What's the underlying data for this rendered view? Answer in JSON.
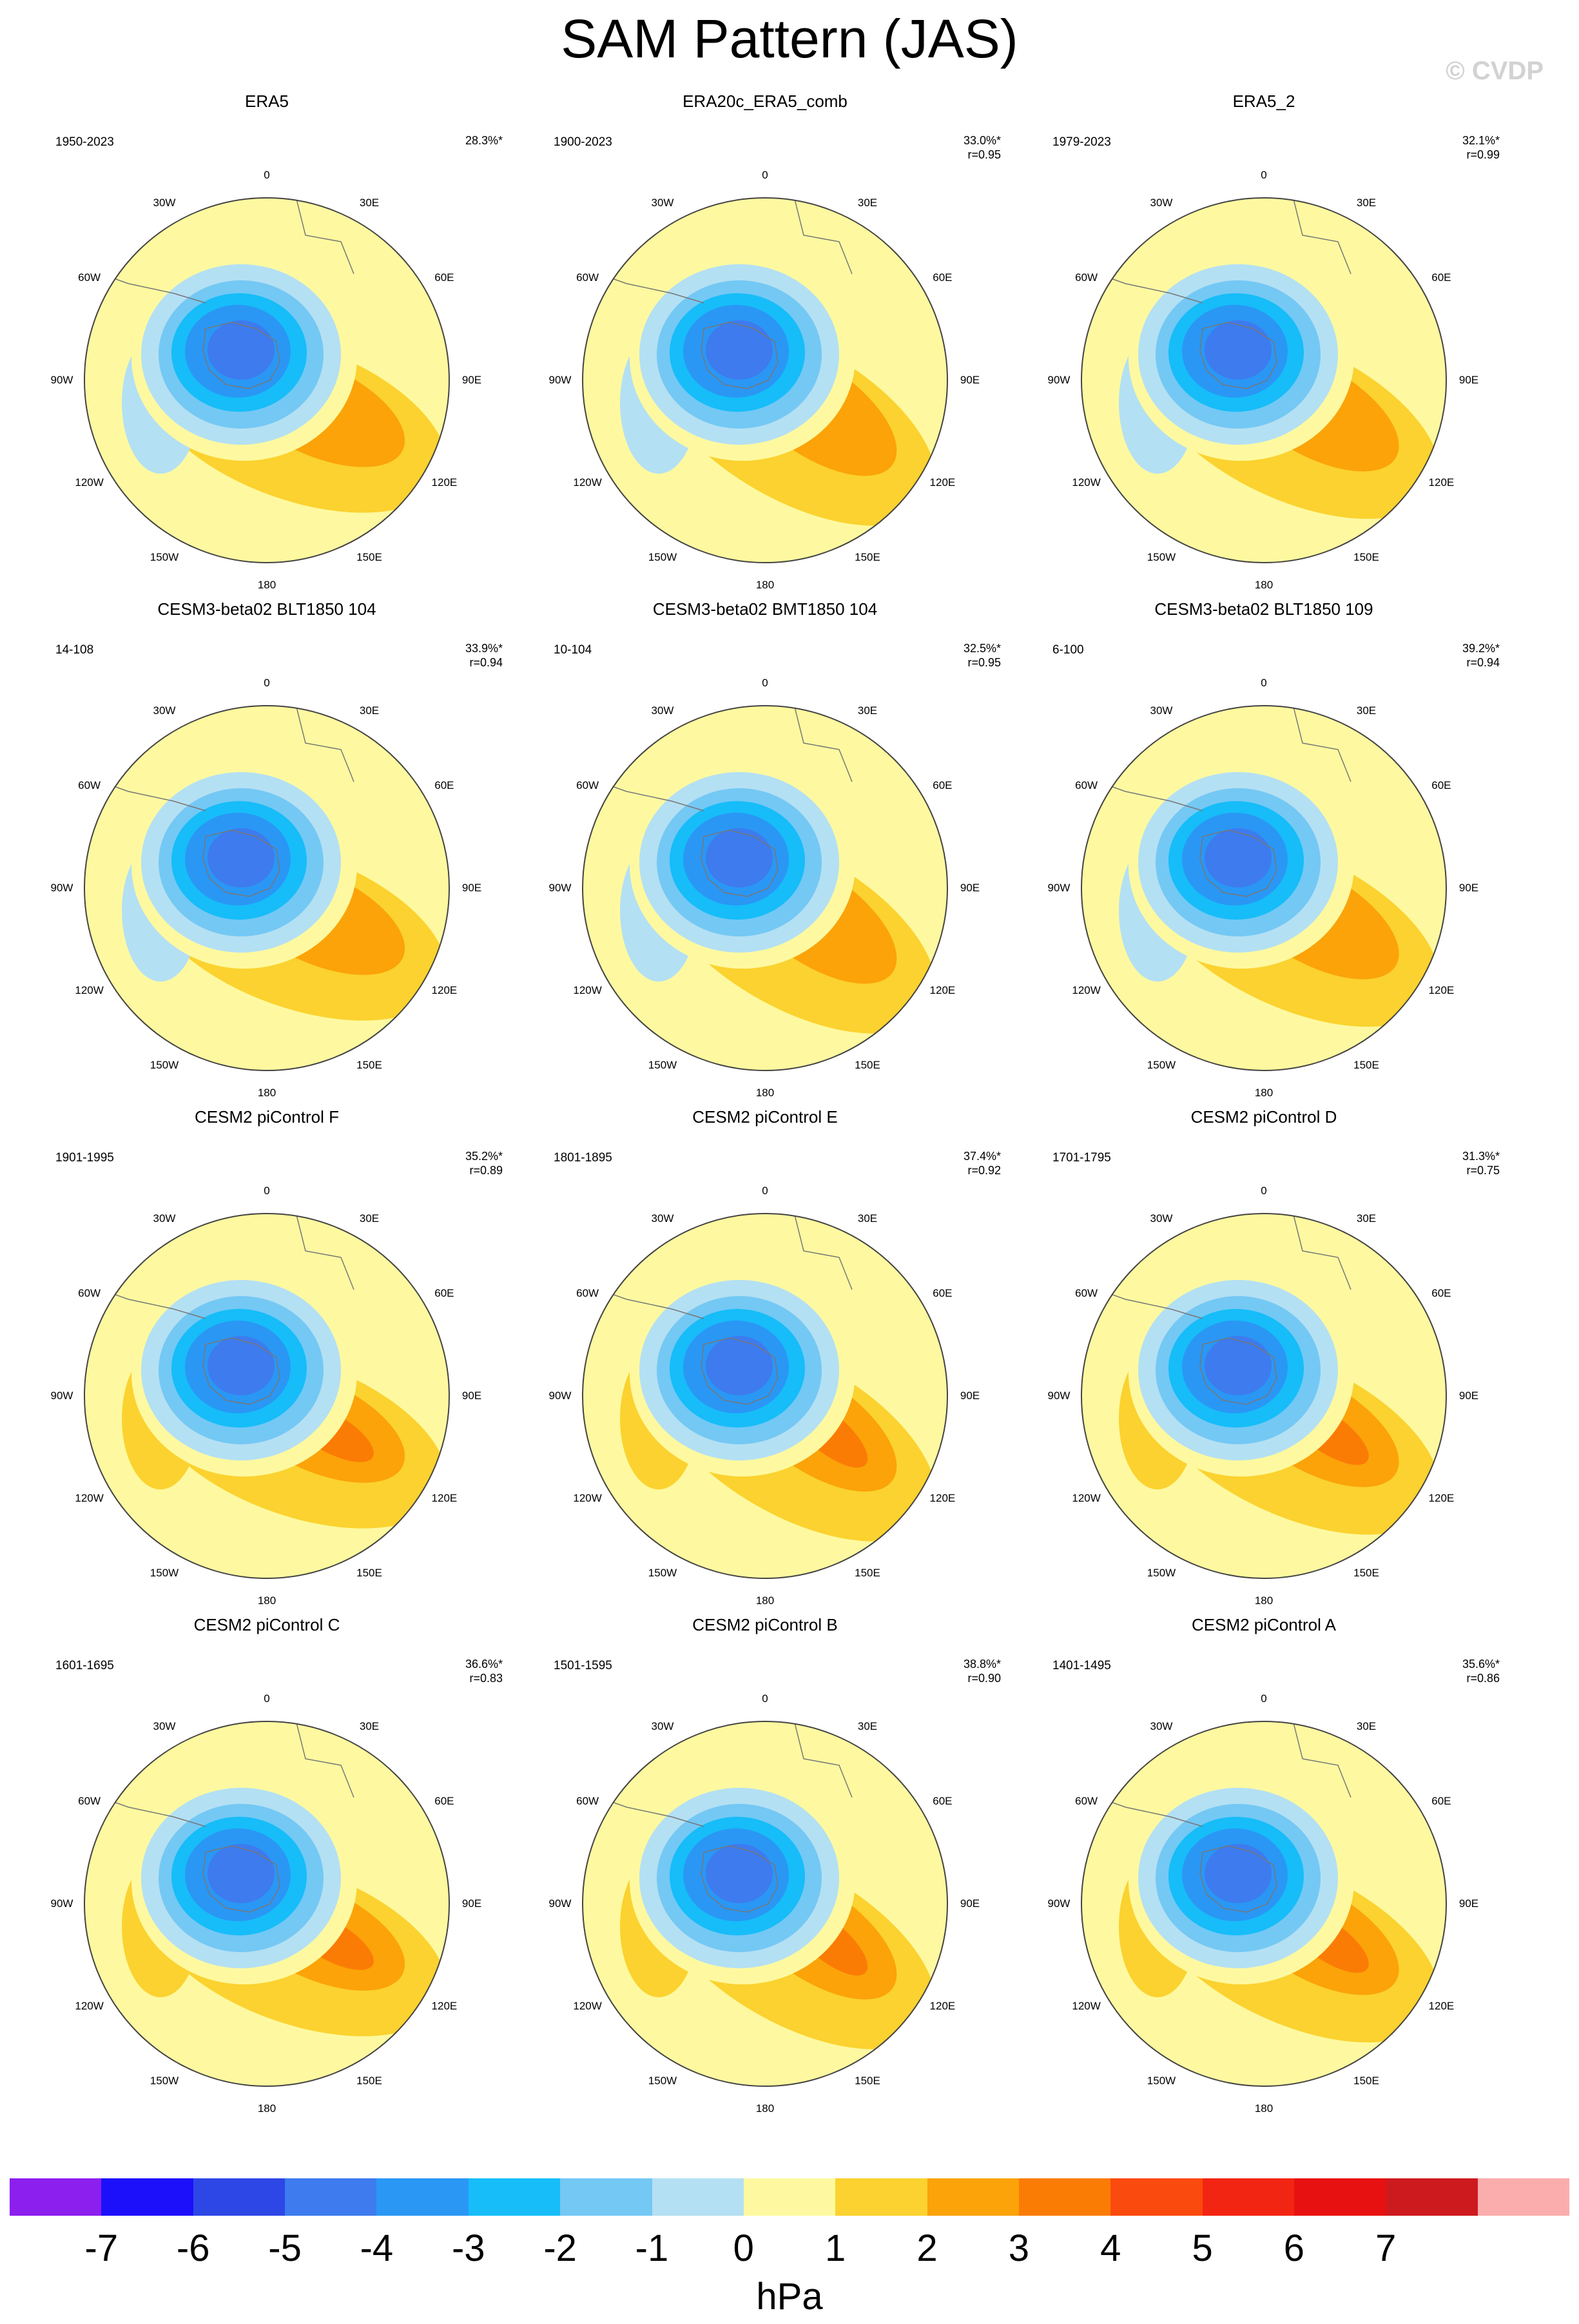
{
  "title": "SAM Pattern (JAS)",
  "watermark": "© CVDP",
  "colors": {
    "land": "#777777",
    "circle": "#444444",
    "shading": [
      "#8c1eee",
      "#1c10fa",
      "#2d47e6",
      "#3d7bee",
      "#2a97f5",
      "#16bdf8",
      "#74c8f4",
      "#b4e0f3",
      "#fef9a0",
      "#fbd22f",
      "#fba309",
      "#fb7c05",
      "#fb4a0d",
      "#f22512",
      "#e81111",
      "#cd1a1e",
      "#fbadad"
    ]
  },
  "lon_labels": [
    "0",
    "30E",
    "60E",
    "90E",
    "120E",
    "150E",
    "180",
    "150W",
    "120W",
    "90W",
    "60W",
    "30W"
  ],
  "panels": [
    {
      "title": "ERA5",
      "period": "1950-2023",
      "pct": "28.3%*",
      "r": ""
    },
    {
      "title": "ERA20c_ERA5_comb",
      "period": "1900-2023",
      "pct": "33.0%*",
      "r": "r=0.95"
    },
    {
      "title": "ERA5_2",
      "period": "1979-2023",
      "pct": "32.1%*",
      "r": "r=0.99"
    },
    {
      "title": "CESM3-beta02 BLT1850 104",
      "period": "14-108",
      "pct": "33.9%*",
      "r": "r=0.94"
    },
    {
      "title": "CESM3-beta02 BMT1850 104",
      "period": "10-104",
      "pct": "32.5%*",
      "r": "r=0.95"
    },
    {
      "title": "CESM3-beta02 BLT1850 109",
      "period": "6-100",
      "pct": "39.2%*",
      "r": "r=0.94"
    },
    {
      "title": "CESM2 piControl F",
      "period": "1901-1995",
      "pct": "35.2%*",
      "r": "r=0.89"
    },
    {
      "title": "CESM2 piControl E",
      "period": "1801-1895",
      "pct": "37.4%*",
      "r": "r=0.92"
    },
    {
      "title": "CESM2 piControl D",
      "period": "1701-1795",
      "pct": "31.3%*",
      "r": "r=0.75"
    },
    {
      "title": "CESM2 piControl C",
      "period": "1601-1695",
      "pct": "36.6%*",
      "r": "r=0.83"
    },
    {
      "title": "CESM2 piControl B",
      "period": "1501-1595",
      "pct": "38.8%*",
      "r": "r=0.90"
    },
    {
      "title": "CESM2 piControl A",
      "period": "1401-1495",
      "pct": "35.6%*",
      "r": "r=0.86"
    }
  ],
  "colorbar": {
    "ticks": [
      "-7",
      "-6",
      "-5",
      "-4",
      "-3",
      "-2",
      "-1",
      "0",
      "1",
      "2",
      "3",
      "4",
      "5",
      "6",
      "7"
    ],
    "units": "hPa"
  }
}
